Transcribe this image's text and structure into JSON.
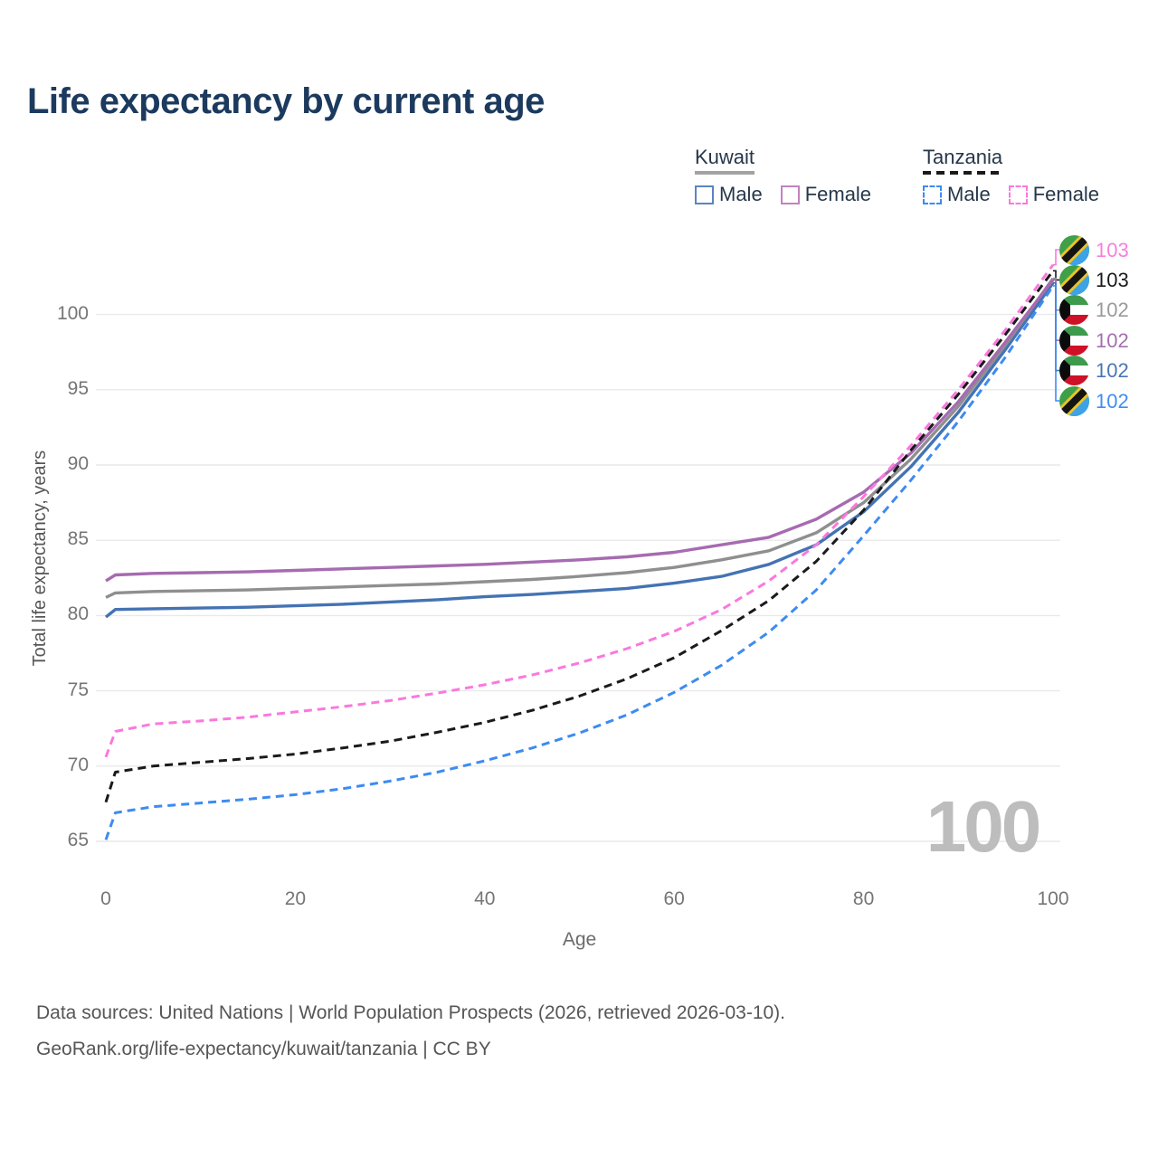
{
  "title": "Life expectancy by current age",
  "legend": {
    "groups": [
      {
        "id": "kuwait",
        "label": "Kuwait",
        "line_style": "solid",
        "underline_color": "#a3a3a3",
        "items": [
          {
            "id": "kuwait-male",
            "label": "Male",
            "color": "#5b84c4",
            "box": "solid"
          },
          {
            "id": "kuwait-female",
            "label": "Female",
            "color": "#c183c1",
            "box": "solid"
          }
        ]
      },
      {
        "id": "tanzania",
        "label": "Tanzania",
        "line_style": "dashed",
        "underline_color": "#1a1a1a",
        "items": [
          {
            "id": "tanzania-male",
            "label": "Male",
            "color": "#3d8bf2",
            "box": "dashed"
          },
          {
            "id": "tanzania-female",
            "label": "Female",
            "color": "#fb78dd",
            "box": "dashed"
          }
        ]
      }
    ]
  },
  "chart_data": {
    "type": "line",
    "title": "Life expectancy by current age",
    "xlabel": "Age",
    "ylabel": "Total life expectancy, years",
    "x_ticks": [
      0,
      20,
      40,
      60,
      80,
      100
    ],
    "y_ticks": [
      65,
      70,
      75,
      80,
      85,
      90,
      95,
      100
    ],
    "xlim": [
      0,
      100
    ],
    "ylim": [
      63.5,
      103.5
    ],
    "grid": "horizontal",
    "legend_position": "top-right",
    "watermark": "100",
    "ages": [
      0,
      1,
      5,
      10,
      15,
      20,
      25,
      30,
      35,
      40,
      45,
      50,
      55,
      60,
      65,
      70,
      75,
      80,
      85,
      90,
      95,
      100
    ],
    "series": [
      {
        "id": "kuwait-male",
        "name": "Kuwait Male",
        "color": "#4473b3",
        "dash": "solid",
        "values": [
          79.9,
          80.4,
          80.45,
          80.5,
          80.55,
          80.65,
          80.75,
          80.9,
          81.05,
          81.25,
          81.4,
          81.6,
          81.8,
          82.15,
          82.6,
          83.4,
          84.7,
          86.9,
          89.9,
          93.5,
          97.7,
          102.1
        ]
      },
      {
        "id": "kuwait-all",
        "name": "Kuwait",
        "color": "#8f8f8f",
        "dash": "solid",
        "values": [
          81.2,
          81.5,
          81.6,
          81.65,
          81.7,
          81.8,
          81.9,
          82.0,
          82.1,
          82.25,
          82.4,
          82.6,
          82.85,
          83.2,
          83.7,
          84.3,
          85.5,
          87.5,
          90.4,
          93.9,
          98.0,
          102.4
        ]
      },
      {
        "id": "kuwait-female",
        "name": "Kuwait Female",
        "color": "#a66bb0",
        "dash": "solid",
        "values": [
          82.3,
          82.7,
          82.8,
          82.85,
          82.9,
          83.0,
          83.1,
          83.2,
          83.3,
          83.4,
          83.55,
          83.7,
          83.9,
          84.2,
          84.7,
          85.2,
          86.4,
          88.2,
          90.8,
          94.2,
          98.2,
          102.3
        ]
      },
      {
        "id": "tanzania-male",
        "name": "Tanzania Male",
        "color": "#3d8bf2",
        "dash": "dashed",
        "values": [
          65.1,
          66.9,
          67.3,
          67.55,
          67.8,
          68.1,
          68.5,
          69.0,
          69.6,
          70.35,
          71.2,
          72.2,
          73.4,
          74.9,
          76.7,
          78.9,
          81.7,
          85.3,
          89.0,
          92.9,
          97.2,
          101.9
        ]
      },
      {
        "id": "tanzania-all",
        "name": "Tanzania",
        "color": "#1a1a1a",
        "dash": "dashed",
        "values": [
          67.6,
          69.6,
          70.0,
          70.25,
          70.5,
          70.8,
          71.2,
          71.65,
          72.25,
          72.9,
          73.7,
          74.65,
          75.8,
          77.2,
          79.0,
          81.0,
          83.6,
          87.0,
          91.0,
          94.7,
          98.7,
          102.9
        ]
      },
      {
        "id": "tanzania-female",
        "name": "Tanzania Female",
        "color": "#fb78dd",
        "dash": "dashed",
        "values": [
          70.6,
          72.3,
          72.8,
          73.0,
          73.25,
          73.6,
          73.95,
          74.35,
          74.85,
          75.4,
          76.05,
          76.85,
          77.8,
          78.95,
          80.4,
          82.3,
          84.7,
          87.9,
          91.3,
          95.0,
          99.0,
          103.3
        ]
      }
    ],
    "end_labels": [
      {
        "series": "tanzania-female",
        "text": "103",
        "color": "#f77fdc",
        "flag": "tanzania"
      },
      {
        "series": "tanzania-all",
        "text": "103",
        "color": "#1a1a1a",
        "flag": "tanzania"
      },
      {
        "series": "kuwait-all",
        "text": "102",
        "color": "#9a9a9a",
        "flag": "kuwait"
      },
      {
        "series": "kuwait-female",
        "text": "102",
        "color": "#a46fae",
        "flag": "kuwait"
      },
      {
        "series": "kuwait-male",
        "text": "102",
        "color": "#4876b4",
        "flag": "kuwait"
      },
      {
        "series": "tanzania-male",
        "text": "102",
        "color": "#418df0",
        "flag": "tanzania"
      }
    ],
    "flag_colors": {
      "kuwait": {
        "green": "#3e9a4d",
        "white": "#ffffff",
        "red": "#ce1126",
        "black": "#0b0b0b"
      },
      "tanzania": {
        "green": "#3fa047",
        "blue": "#3da3e6",
        "yellow": "#e9c427",
        "black": "#141414"
      }
    }
  },
  "footer": {
    "line1": "Data sources: United Nations | World Population Prospects (2026, retrieved 2026-03-10).",
    "line2": "GeoRank.org/life-expectancy/kuwait/tanzania | CC BY"
  }
}
